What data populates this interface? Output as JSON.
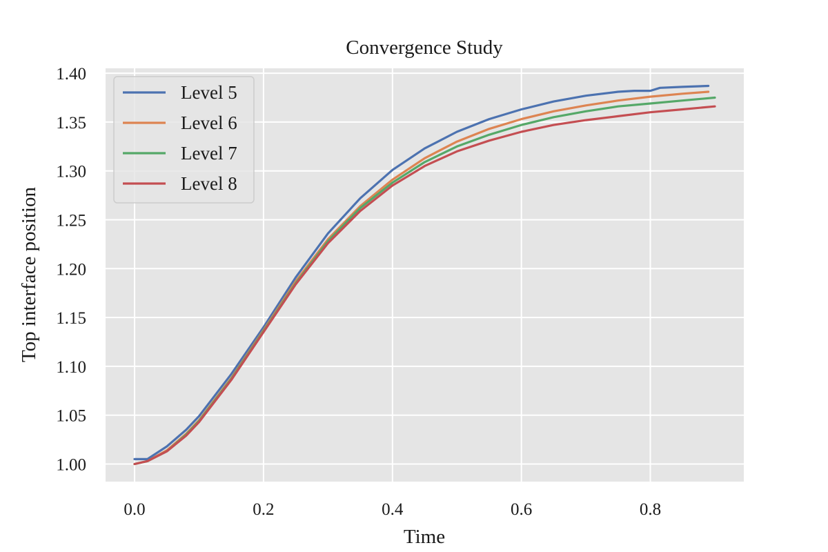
{
  "chart_data": {
    "type": "line",
    "title": "Convergence Study",
    "xlabel": "Time",
    "ylabel": "Top interface position",
    "xlim": [
      -0.045,
      0.945
    ],
    "ylim": [
      0.982,
      1.405
    ],
    "x_ticks": [
      0.0,
      0.2,
      0.4,
      0.6,
      0.8
    ],
    "x_tick_labels": [
      "0.0",
      "0.2",
      "0.4",
      "0.6",
      "0.8"
    ],
    "y_ticks": [
      1.0,
      1.05,
      1.1,
      1.15,
      1.2,
      1.25,
      1.3,
      1.35,
      1.4
    ],
    "y_tick_labels": [
      "1.00",
      "1.05",
      "1.10",
      "1.15",
      "1.20",
      "1.25",
      "1.30",
      "1.35",
      "1.40"
    ],
    "grid": true,
    "legend_position": "top-left",
    "background_color": "#e5e5e5",
    "grid_color": "#ffffff",
    "series": [
      {
        "name": "Level 5",
        "color": "#4c72b0",
        "x": [
          0.0,
          0.02,
          0.05,
          0.08,
          0.1,
          0.15,
          0.2,
          0.25,
          0.3,
          0.35,
          0.4,
          0.45,
          0.5,
          0.55,
          0.6,
          0.65,
          0.7,
          0.75,
          0.775,
          0.8,
          0.815,
          0.85,
          0.89
        ],
        "y": [
          1.005,
          1.005,
          1.018,
          1.035,
          1.049,
          1.092,
          1.14,
          1.191,
          1.236,
          1.272,
          1.301,
          1.323,
          1.34,
          1.353,
          1.363,
          1.371,
          1.377,
          1.381,
          1.382,
          1.382,
          1.385,
          1.386,
          1.387
        ]
      },
      {
        "name": "Level 6",
        "color": "#dd8452",
        "x": [
          0.0,
          0.02,
          0.05,
          0.08,
          0.1,
          0.15,
          0.2,
          0.25,
          0.3,
          0.35,
          0.4,
          0.45,
          0.5,
          0.55,
          0.6,
          0.65,
          0.7,
          0.75,
          0.8,
          0.85,
          0.89
        ],
        "y": [
          1.0,
          1.003,
          1.014,
          1.031,
          1.045,
          1.088,
          1.137,
          1.187,
          1.23,
          1.264,
          1.291,
          1.313,
          1.33,
          1.343,
          1.353,
          1.361,
          1.367,
          1.372,
          1.376,
          1.379,
          1.381
        ]
      },
      {
        "name": "Level 7",
        "color": "#55a868",
        "x": [
          0.0,
          0.02,
          0.05,
          0.08,
          0.1,
          0.15,
          0.2,
          0.25,
          0.3,
          0.35,
          0.4,
          0.45,
          0.5,
          0.55,
          0.6,
          0.65,
          0.7,
          0.75,
          0.8,
          0.85,
          0.9
        ],
        "y": [
          1.0,
          1.003,
          1.013,
          1.03,
          1.044,
          1.087,
          1.136,
          1.185,
          1.228,
          1.262,
          1.288,
          1.309,
          1.325,
          1.337,
          1.347,
          1.355,
          1.361,
          1.366,
          1.369,
          1.372,
          1.375
        ]
      },
      {
        "name": "Level 8",
        "color": "#c44e52",
        "x": [
          0.0,
          0.02,
          0.05,
          0.08,
          0.1,
          0.15,
          0.2,
          0.25,
          0.3,
          0.35,
          0.4,
          0.45,
          0.5,
          0.55,
          0.6,
          0.65,
          0.7,
          0.75,
          0.8,
          0.85,
          0.9
        ],
        "y": [
          1.0,
          1.003,
          1.013,
          1.029,
          1.043,
          1.086,
          1.135,
          1.184,
          1.226,
          1.259,
          1.285,
          1.305,
          1.32,
          1.331,
          1.34,
          1.347,
          1.352,
          1.356,
          1.36,
          1.363,
          1.366
        ]
      }
    ]
  }
}
